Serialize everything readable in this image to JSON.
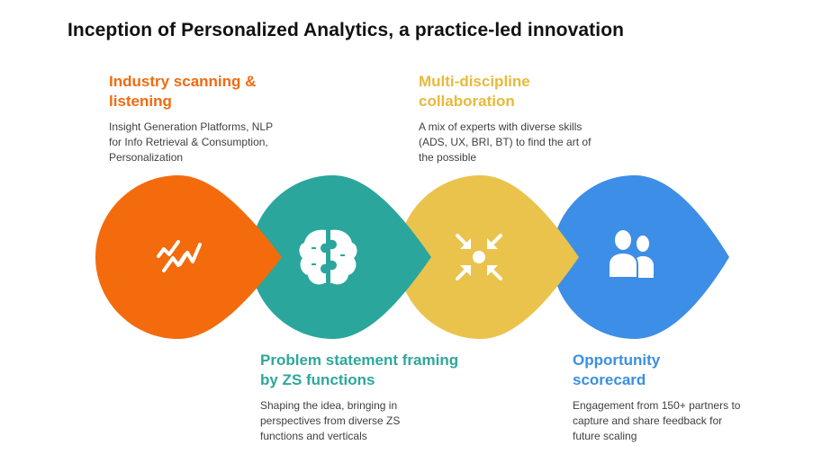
{
  "title": "Inception of Personalized Analytics, a practice-led innovation",
  "steps": [
    {
      "heading_line1": "Industry scanning &",
      "heading_line2": "listening",
      "desc_line1": "Insight Generation Platforms, NLP",
      "desc_line2": "for Info Retrieval & Consumption,",
      "desc_line3": "Personalization",
      "color": "#F36B0C",
      "icon": "trend-line-icon"
    },
    {
      "heading_line1": "Problem statement framing",
      "heading_line2": "by ZS functions",
      "desc_line1": "Shaping the idea, bringing in",
      "desc_line2": "perspectives from diverse ZS",
      "desc_line3": "functions and verticals",
      "color": "#2AA69C",
      "icon": "brain-puzzle-icon"
    },
    {
      "heading_line1": "Multi-discipline",
      "heading_line2": "collaboration",
      "desc_line1": "A mix of experts with diverse skills",
      "desc_line2": "(ADS, UX, BRI, BT) to find the art of",
      "desc_line3": "the possible",
      "color": "#EAC34D",
      "icon": "converge-arrows-icon"
    },
    {
      "heading_line1": "Opportunity",
      "heading_line2": "scorecard",
      "desc_line1": "Engagement from 150+ partners to",
      "desc_line2": "capture and share feedback for",
      "desc_line3": "future scaling",
      "color": "#3D8EE6",
      "icon": "people-icon"
    }
  ]
}
